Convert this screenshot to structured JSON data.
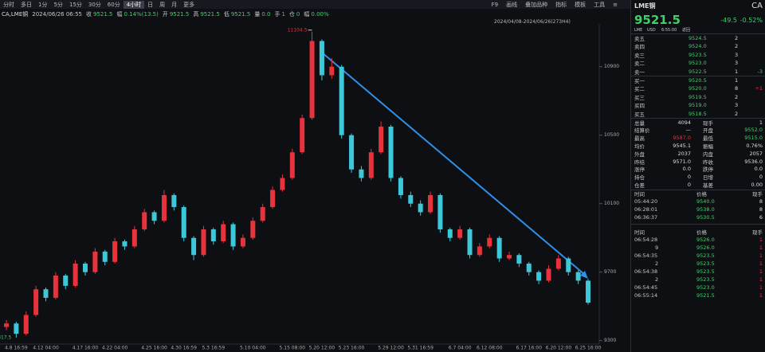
{
  "toolbar": {
    "tabs": [
      "分时",
      "多日",
      "1分",
      "5分",
      "15分",
      "30分",
      "60分",
      "4小时",
      "日",
      "周",
      "月",
      "更多"
    ],
    "right": [
      "F9",
      "画线",
      "叠加品种",
      "指标",
      "模板",
      "工具",
      "≡"
    ]
  },
  "info_bar": {
    "symbol": "CA,LME铜",
    "datetime": "2024/06/26 06:55",
    "items": [
      {
        "label": "收",
        "value": "9521.5"
      },
      {
        "label": "幅",
        "value": "0.14%(13.5)"
      },
      {
        "label": "开",
        "value": "9521.5"
      },
      {
        "label": "高",
        "value": "9521.5"
      },
      {
        "label": "低",
        "value": "9521.5"
      },
      {
        "label": "量",
        "value": "0.0"
      },
      {
        "label": "手",
        "value": "1"
      },
      {
        "label": "仓",
        "value": "0"
      },
      {
        "label": "幅",
        "value": "0.00%"
      }
    ],
    "range": "2024/04/08-2024/06/26(273H4)"
  },
  "chart_data": {
    "type": "candlestick",
    "up_color": "#e8323c",
    "down_color": "#3cc8d8",
    "grid": false,
    "ylim": [
      9280,
      11150
    ],
    "yticks": [
      9300,
      9700,
      10100,
      10500,
      10900
    ],
    "categories": [
      null,
      "4.8 16:59",
      null,
      null,
      "4.12 04:00",
      null,
      null,
      null,
      "4.17 16:00",
      null,
      null,
      "4.22 04:00",
      null,
      null,
      null,
      "4.25 16:00",
      null,
      null,
      "4.30 16:59",
      null,
      null,
      "5.3 16:59",
      null,
      null,
      null,
      "5.10 04:00",
      null,
      null,
      null,
      "5.15 08:00",
      null,
      null,
      "5.20 12:00",
      null,
      null,
      "5.23 16:00",
      null,
      null,
      null,
      "5.29 12:00",
      null,
      null,
      "5.31 16:59",
      null,
      null,
      null,
      "6.7 04:00",
      null,
      null,
      "6.12 08:00",
      null,
      null,
      null,
      "6.17 16:00",
      null,
      null,
      "6.20 12:00",
      null,
      null,
      "6.25 16:00"
    ],
    "open": [
      9380,
      9400,
      9340,
      9450,
      9600,
      9550,
      9680,
      9620,
      9750,
      9700,
      9820,
      9760,
      9880,
      9850,
      9950,
      10050,
      10000,
      10150,
      10080,
      9900,
      9800,
      9950,
      9880,
      9980,
      9850,
      9900,
      10000,
      10080,
      10180,
      10250,
      10400,
      10600,
      11050,
      10850,
      10900,
      10500,
      10300,
      10250,
      10400,
      10550,
      10250,
      10150,
      10100,
      10050,
      10150,
      9950,
      9900,
      9950,
      9800,
      9850,
      9900,
      9780,
      9800,
      9750,
      9700,
      9650,
      9720,
      9780,
      9700,
      9650
    ],
    "high": [
      9420,
      9410,
      9470,
      9620,
      9610,
      9700,
      9690,
      9770,
      9760,
      9840,
      9830,
      9900,
      9890,
      9970,
      10070,
      10060,
      10180,
      10160,
      10090,
      9910,
      9970,
      9960,
      10000,
      9990,
      9920,
      10020,
      10100,
      10200,
      10270,
      10420,
      10620,
      11104.5,
      11060,
      10950,
      10910,
      10510,
      10320,
      10420,
      10580,
      10560,
      10260,
      10170,
      10120,
      10170,
      10160,
      9960,
      9970,
      9960,
      9870,
      9920,
      9910,
      9820,
      9810,
      9760,
      9710,
      9740,
      9800,
      9790,
      9710,
      9660
    ],
    "low": [
      9360,
      9317.5,
      9330,
      9440,
      9530,
      9540,
      9600,
      9610,
      9680,
      9690,
      9740,
      9750,
      9830,
      9840,
      9940,
      9980,
      9990,
      10060,
      9880,
      9770,
      9790,
      9860,
      9870,
      9830,
      9840,
      9890,
      9990,
      10070,
      10170,
      10240,
      10390,
      10590,
      10820,
      10830,
      10480,
      10280,
      10230,
      10240,
      10390,
      10230,
      10130,
      10080,
      10030,
      10040,
      9930,
      9880,
      9890,
      9780,
      9790,
      9840,
      9760,
      9770,
      9730,
      9680,
      9630,
      9640,
      9710,
      9680,
      9630,
      9510
    ],
    "close": [
      9400,
      9340,
      9450,
      9600,
      9550,
      9680,
      9620,
      9750,
      9700,
      9820,
      9760,
      9880,
      9850,
      9950,
      10050,
      10000,
      10150,
      10080,
      9900,
      9800,
      9950,
      9880,
      9980,
      9850,
      9900,
      10000,
      10080,
      10180,
      10250,
      10400,
      10600,
      11050,
      10850,
      10900,
      10500,
      10300,
      10250,
      10400,
      10550,
      10250,
      10150,
      10100,
      10050,
      10150,
      9950,
      9900,
      9950,
      9800,
      9850,
      9900,
      9780,
      9800,
      9750,
      9700,
      9650,
      9720,
      9780,
      9700,
      9650,
      9521.5
    ]
  },
  "quote": {
    "name": "LME铜",
    "code": "CA",
    "price": "9521.5",
    "change": "-49.5",
    "change_pct": "-0.52%",
    "exchange": "LME",
    "currency": "USD",
    "time": "6:55:00",
    "extra": "返回"
  },
  "order_book": {
    "asks": [
      {
        "label": "卖五",
        "price": "9524.5",
        "volume": "2"
      },
      {
        "label": "卖四",
        "price": "9524.0",
        "volume": "2"
      },
      {
        "label": "卖三",
        "price": "9523.5",
        "volume": "3"
      },
      {
        "label": "卖二",
        "price": "9523.0",
        "volume": "3"
      },
      {
        "label": "卖一",
        "price": "9522.5",
        "volume": "1",
        "delta": "-3"
      }
    ],
    "bids": [
      {
        "label": "买一",
        "price": "9520.5",
        "volume": "1"
      },
      {
        "label": "买二",
        "price": "9520.0",
        "volume": "8",
        "delta": "+1"
      },
      {
        "label": "买三",
        "price": "9519.5",
        "volume": "2"
      },
      {
        "label": "买四",
        "price": "9519.0",
        "volume": "3"
      },
      {
        "label": "买五",
        "price": "9518.5",
        "volume": "2"
      }
    ]
  },
  "stats": [
    [
      "总量",
      "4094",
      "现手",
      "1"
    ],
    [
      "结算价",
      "—",
      "开盘",
      "9552.0"
    ],
    [
      "最高",
      "9587.0",
      "最低",
      "9515.0"
    ],
    [
      "均价",
      "9545.1",
      "振幅",
      "0.76%"
    ],
    [
      "外盘",
      "2037",
      "内盘",
      "2057"
    ],
    [
      "昨结",
      "9571.0",
      "昨收",
      "9536.0"
    ],
    [
      "涨停",
      "0.0",
      "跌停",
      "0.0"
    ],
    [
      "持仓",
      "0",
      "日增",
      "0"
    ],
    [
      "仓差",
      "0",
      "基差",
      "0.00"
    ]
  ],
  "trades_top": {
    "header": [
      "时间",
      "价格",
      "现手"
    ],
    "rows": [
      [
        "05:44:20",
        "9540.0",
        "8"
      ],
      [
        "06:28:01",
        "9538.0",
        "8"
      ],
      [
        "06:36:37",
        "9530.5",
        "6"
      ]
    ]
  },
  "trades_bottom": {
    "header": [
      "时间",
      "价格",
      "现手"
    ],
    "rows": [
      [
        "06:54:28",
        "9526.0",
        "1"
      ],
      [
        "9",
        "9526.0",
        "1"
      ],
      [
        "06:54:35",
        "9523.5",
        "1"
      ],
      [
        "2",
        "9523.5",
        "1"
      ],
      [
        "06:54:38",
        "9523.5",
        "1"
      ],
      [
        "2",
        "9523.5",
        "1"
      ],
      [
        "06:54:45",
        "9523.0",
        "1"
      ],
      [
        "06:55:14",
        "9521.5",
        "1"
      ]
    ]
  }
}
